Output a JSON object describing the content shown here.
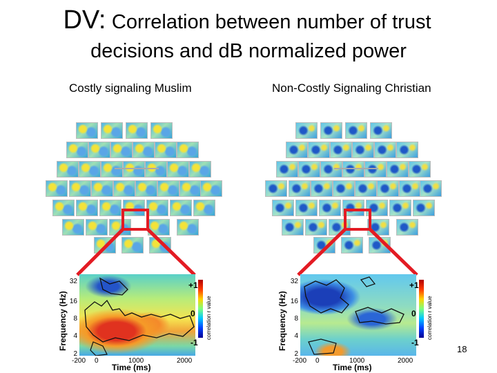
{
  "slide": {
    "title_prefix": "DV:",
    "title_rest": "Correlation between number of trust",
    "title_line2": "decisions and dB normalized power",
    "page_number": "18"
  },
  "panels": [
    {
      "label": "Costly signaling Muslim",
      "y_label": "Frequency (Hz)",
      "x_label": "Time (ms)",
      "y_ticks": [
        "32",
        "16",
        "8",
        "4",
        "2"
      ],
      "x_ticks": [
        "-200",
        "0",
        "1000",
        "2000"
      ],
      "colorbar_ticks": [
        "+1",
        "0",
        "-1"
      ],
      "colorbar_label": "correlation r value"
    },
    {
      "label": "Non-Costly Signaling Christian",
      "y_label": "Frequency (Hz)",
      "x_label": "Time (ms)",
      "y_ticks": [
        "32",
        "16",
        "8",
        "4",
        "2"
      ],
      "x_ticks": [
        "-200",
        "0",
        "1000",
        "2000"
      ],
      "colorbar_ticks": [
        "+1",
        "0",
        "-1"
      ],
      "colorbar_label": "correlation r value"
    }
  ],
  "colors": {
    "highlight": "#e31b23",
    "contour": "#111111"
  }
}
